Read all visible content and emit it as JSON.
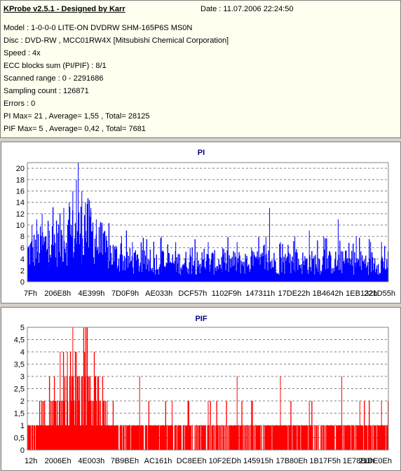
{
  "header": {
    "title": "KProbe v2.5.1 - Designed by Karr",
    "date": "Date : 11.07.2006 22:24:50",
    "lines": [
      "Model : 1-0-0-0 LITE-ON DVDRW SHM-165P6S MS0N",
      "Disc : DVD-RW , MCC01RW4X [Mitsubishi Chemical Corporation]",
      "Speed : 4x",
      "ECC blocks sum (PI/PIF) : 8/1",
      "Scanned range : 0 - 2291686",
      "Sampling count : 126871",
      "Errors : 0",
      "PI Max= 21 , Average= 1,55 , Total= 28125",
      "PIF Max= 5 , Average= 0,42 , Total= 7681"
    ]
  },
  "chart_data": [
    {
      "type": "bar",
      "title": "PI",
      "color": "#0000ff",
      "ylim": [
        0,
        21
      ],
      "yticks": [
        "0",
        "2",
        "4",
        "6",
        "8",
        "10",
        "12",
        "14",
        "16",
        "18",
        "20"
      ],
      "ytick_values": [
        0,
        2,
        4,
        6,
        8,
        10,
        12,
        14,
        16,
        18,
        20
      ],
      "xticks": [
        "7Fh",
        "206E8h",
        "4E399h",
        "7D0F9h",
        "AE033h",
        "DCF57h",
        "1102F9h",
        "147311h",
        "17DE22h",
        "1B4642h",
        "1EB132h",
        "221D55h"
      ],
      "grid": true,
      "profile": [
        [
          0.0,
          6
        ],
        [
          0.03,
          7
        ],
        [
          0.07,
          8
        ],
        [
          0.1,
          9
        ],
        [
          0.14,
          10
        ],
        [
          0.16,
          11
        ],
        [
          0.18,
          10
        ],
        [
          0.2,
          7
        ],
        [
          0.25,
          5
        ],
        [
          0.3,
          4
        ],
        [
          0.4,
          4
        ],
        [
          0.6,
          4
        ],
        [
          0.8,
          4
        ],
        [
          1.0,
          4
        ]
      ],
      "peaks": [
        [
          0.012,
          10
        ],
        [
          0.025,
          11
        ],
        [
          0.04,
          12
        ],
        [
          0.06,
          9
        ],
        [
          0.08,
          10
        ],
        [
          0.1,
          13
        ],
        [
          0.115,
          14
        ],
        [
          0.125,
          16
        ],
        [
          0.135,
          18
        ],
        [
          0.14,
          21
        ],
        [
          0.15,
          16
        ],
        [
          0.16,
          14
        ],
        [
          0.175,
          13
        ],
        [
          0.19,
          11
        ],
        [
          0.205,
          10
        ],
        [
          0.225,
          9
        ],
        [
          0.26,
          8
        ],
        [
          0.29,
          7
        ],
        [
          0.33,
          7
        ],
        [
          0.37,
          8
        ],
        [
          0.41,
          7
        ],
        [
          0.45,
          6
        ],
        [
          0.5,
          7
        ],
        [
          0.54,
          6
        ],
        [
          0.58,
          7
        ],
        [
          0.62,
          6
        ],
        [
          0.66,
          8
        ],
        [
          0.67,
          13
        ],
        [
          0.7,
          7
        ],
        [
          0.74,
          8
        ],
        [
          0.78,
          9
        ],
        [
          0.82,
          8
        ],
        [
          0.86,
          11
        ],
        [
          0.91,
          8
        ],
        [
          0.95,
          7
        ],
        [
          0.98,
          7
        ]
      ]
    },
    {
      "type": "bar",
      "title": "PIF",
      "color": "#ff0000",
      "ylim": [
        0,
        5
      ],
      "yticks": [
        "0",
        "0,5",
        "1",
        "1,5",
        "2",
        "2,5",
        "3",
        "3,5",
        "4",
        "4,5",
        "5"
      ],
      "ytick_values": [
        0,
        0.5,
        1,
        1.5,
        2,
        2.5,
        3,
        3.5,
        4,
        4.5,
        5
      ],
      "xticks": [
        "12h",
        "2006Eh",
        "4E003h",
        "7B9BEh",
        "AC161h",
        "DC8EEh",
        "10F2EDh",
        "145915h",
        "17B80Eh",
        "1B17F5h",
        "1E78B0h",
        "21DE0Eh"
      ],
      "grid": true,
      "profile": [
        [
          0.0,
          1
        ],
        [
          0.1,
          2
        ],
        [
          0.13,
          3
        ],
        [
          0.2,
          2
        ],
        [
          0.25,
          1
        ],
        [
          1.0,
          1
        ]
      ],
      "peaks": [
        [
          0.09,
          4
        ],
        [
          0.11,
          4
        ],
        [
          0.125,
          5
        ],
        [
          0.135,
          4
        ],
        [
          0.16,
          3
        ],
        [
          0.17,
          3
        ],
        [
          0.31,
          3
        ],
        [
          0.58,
          3
        ],
        [
          0.7,
          3
        ],
        [
          0.87,
          3
        ],
        [
          0.22,
          2
        ],
        [
          0.4,
          2
        ],
        [
          0.5,
          2
        ],
        [
          0.62,
          2
        ],
        [
          0.78,
          2
        ],
        [
          0.92,
          2
        ],
        [
          0.98,
          2
        ]
      ]
    }
  ]
}
